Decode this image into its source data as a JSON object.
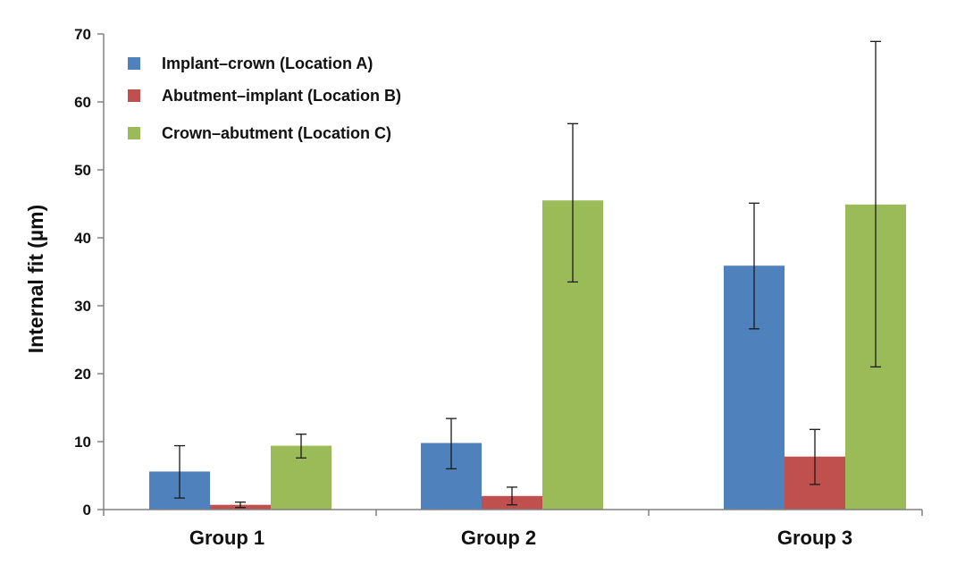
{
  "chart_data": {
    "type": "bar",
    "title": "",
    "xlabel": "",
    "ylabel": "Internal fit (µm)",
    "ylim": [
      0,
      70
    ],
    "yticks": [
      0,
      10,
      20,
      30,
      40,
      50,
      60,
      70
    ],
    "grid": false,
    "legend_position": "top-left",
    "categories": [
      "Group 1",
      "Group 2",
      "Group 3"
    ],
    "series": [
      {
        "name": "Implant–crown (Location A)",
        "color": "#4f81bd",
        "values": [
          5.6,
          9.8,
          35.9
        ],
        "error_low": [
          1.7,
          6.0,
          26.6
        ],
        "error_high": [
          9.4,
          13.4,
          45.1
        ]
      },
      {
        "name": "Abutment–implant (Location B)",
        "color": "#c0504d",
        "values": [
          0.7,
          2.0,
          7.8
        ],
        "error_low": [
          0.3,
          0.7,
          3.7
        ],
        "error_high": [
          1.1,
          3.3,
          11.8
        ]
      },
      {
        "name": "Crown–abutment (Location C)",
        "color": "#9bbb59",
        "values": [
          9.4,
          45.5,
          44.9
        ],
        "error_low": [
          7.6,
          33.5,
          21.0
        ],
        "error_high": [
          11.1,
          56.8,
          68.9
        ]
      }
    ]
  }
}
